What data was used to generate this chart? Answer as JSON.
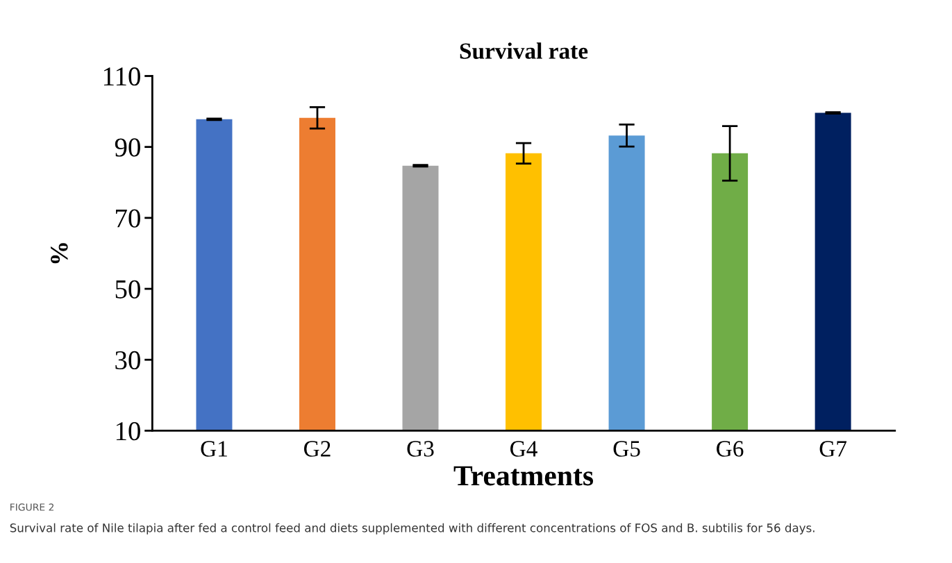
{
  "chart_data": {
    "type": "bar",
    "title": "Survival rate",
    "xlabel": "Treatments",
    "ylabel": "%",
    "categories": [
      "G1",
      "G2",
      "G3",
      "G4",
      "G5",
      "G6",
      "G7"
    ],
    "values": [
      97.8,
      98.2,
      84.7,
      88.2,
      93.2,
      88.2,
      99.6
    ],
    "errors": [
      0.2,
      3.0,
      0.2,
      2.9,
      3.1,
      7.7,
      0.2
    ],
    "colors": [
      "#4472c4",
      "#ed7d31",
      "#a5a5a5",
      "#ffc000",
      "#5b9bd5",
      "#70ad47",
      "#002060"
    ],
    "ylim": [
      10,
      110
    ],
    "yticks": [
      10,
      30,
      50,
      70,
      90,
      110
    ],
    "grid": false,
    "legend": false,
    "annotations": [
      "FIGURE 2",
      "Survival rate of Nile tilapia after fed a control feed and diets supplemented with different concentrations of FOS and B. subtilis for 56 days."
    ]
  }
}
